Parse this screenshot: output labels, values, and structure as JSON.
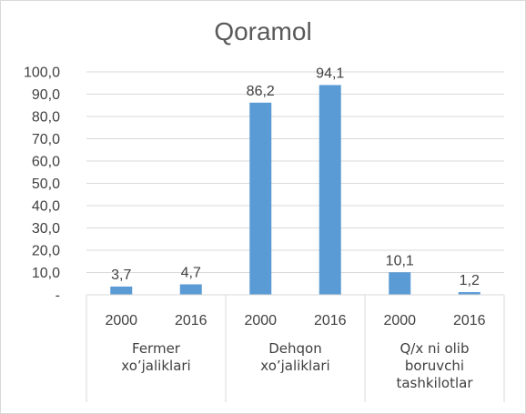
{
  "chart_data": {
    "type": "bar",
    "title": "Qoramol",
    "groups": [
      {
        "label_lines": [
          "Fermer",
          "xo’jaliklari"
        ],
        "categories": [
          "2000",
          "2016"
        ]
      },
      {
        "label_lines": [
          "Dehqon",
          "xo’jaliklari"
        ],
        "categories": [
          "2000",
          "2016"
        ]
      },
      {
        "label_lines": [
          "Q/x ni olib",
          "boruvchi",
          "tashkilotlar"
        ],
        "categories": [
          "2000",
          "2016"
        ]
      }
    ],
    "values": [
      3.7,
      4.7,
      86.2,
      94.1,
      10.1,
      1.2
    ],
    "data_labels": [
      "3,7",
      "4,7",
      "86,2",
      "94,1",
      "10,1",
      "1,2"
    ],
    "y_ticks": [
      "-",
      "10,0",
      "20,0",
      "30,0",
      "40,0",
      "50,0",
      "60,0",
      "70,0",
      "80,0",
      "90,0",
      "100,0"
    ],
    "ylim": [
      0,
      100
    ],
    "grid": true,
    "bar_color": "#5b9bd5",
    "grid_color": "#d9d9d9",
    "legend": "none"
  }
}
